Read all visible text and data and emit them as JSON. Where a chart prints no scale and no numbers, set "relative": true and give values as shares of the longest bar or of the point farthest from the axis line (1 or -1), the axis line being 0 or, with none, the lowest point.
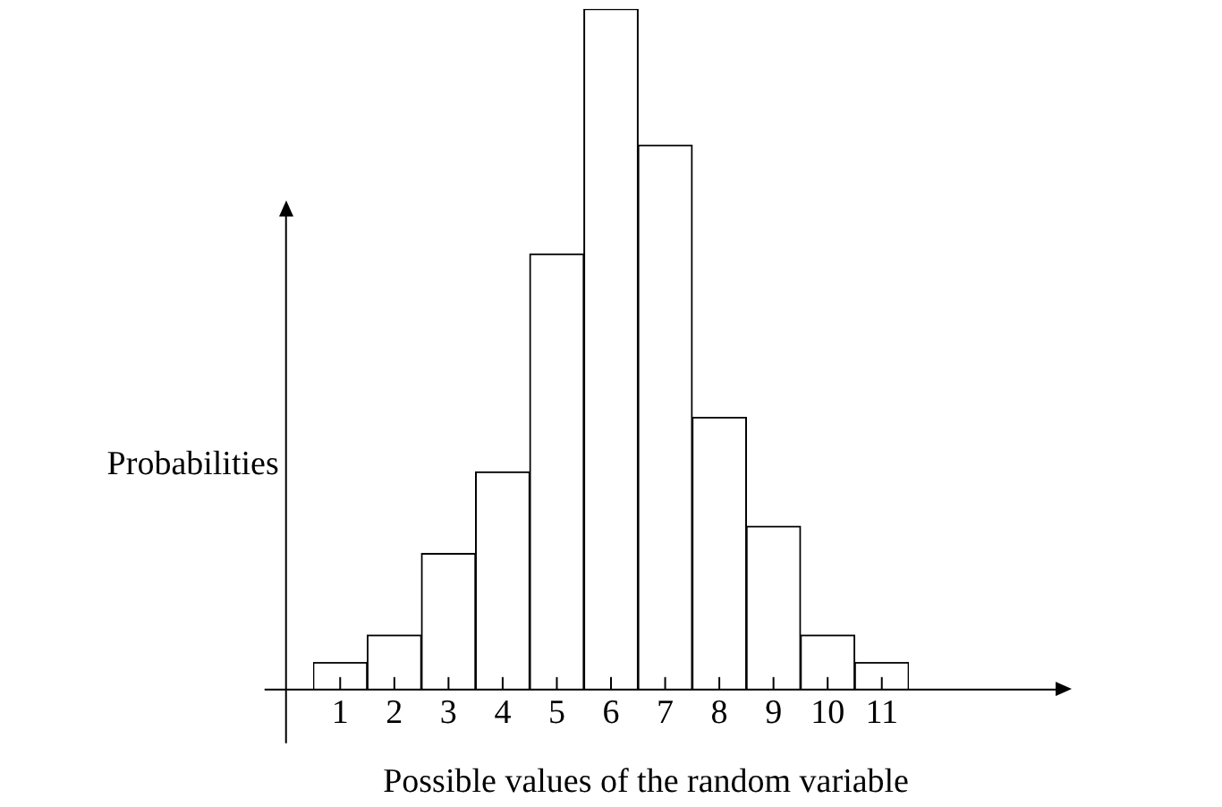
{
  "chart_data": {
    "type": "bar",
    "relative": true,
    "xlabel": "Possible values of the random variable",
    "ylabel": "Probabilities",
    "categories": [
      "1",
      "2",
      "3",
      "4",
      "5",
      "6",
      "7",
      "8",
      "9",
      "10",
      "11"
    ],
    "values": [
      0.04,
      0.08,
      0.2,
      0.32,
      0.64,
      1,
      0.8,
      0.4,
      0.24,
      0.08,
      0.04
    ],
    "color": "#ffffff",
    "grid": false,
    "legend": false
  }
}
